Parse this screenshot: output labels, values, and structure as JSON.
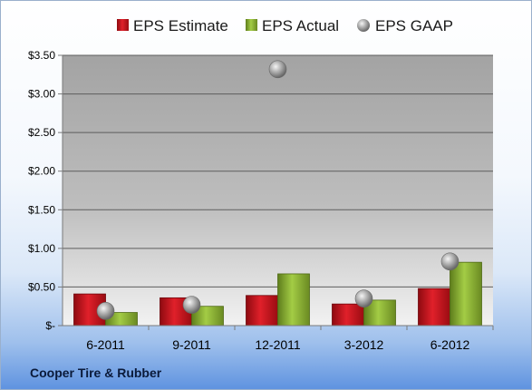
{
  "company_label": "Cooper Tire & Rubber",
  "chart_data": {
    "type": "bar",
    "categories": [
      "6-2011",
      "9-2011",
      "12-2011",
      "3-2012",
      "6-2012"
    ],
    "series": [
      {
        "name": "EPS Estimate",
        "kind": "bar",
        "color": "#c0111a",
        "values": [
          0.41,
          0.36,
          0.39,
          0.28,
          0.48
        ]
      },
      {
        "name": "EPS Actual",
        "kind": "bar",
        "color": "#7fa32a",
        "values": [
          0.17,
          0.25,
          0.67,
          0.33,
          0.82
        ]
      },
      {
        "name": "EPS GAAP",
        "kind": "marker",
        "color": "#9a9a9a",
        "values": [
          0.19,
          0.27,
          3.32,
          0.35,
          0.83
        ]
      }
    ],
    "y_ticks": [
      "$-",
      "$0.50",
      "$1.00",
      "$1.50",
      "$2.00",
      "$2.50",
      "$3.00",
      "$3.50"
    ],
    "ylim": [
      0,
      3.5
    ],
    "grid": true,
    "legend_position": "top"
  }
}
